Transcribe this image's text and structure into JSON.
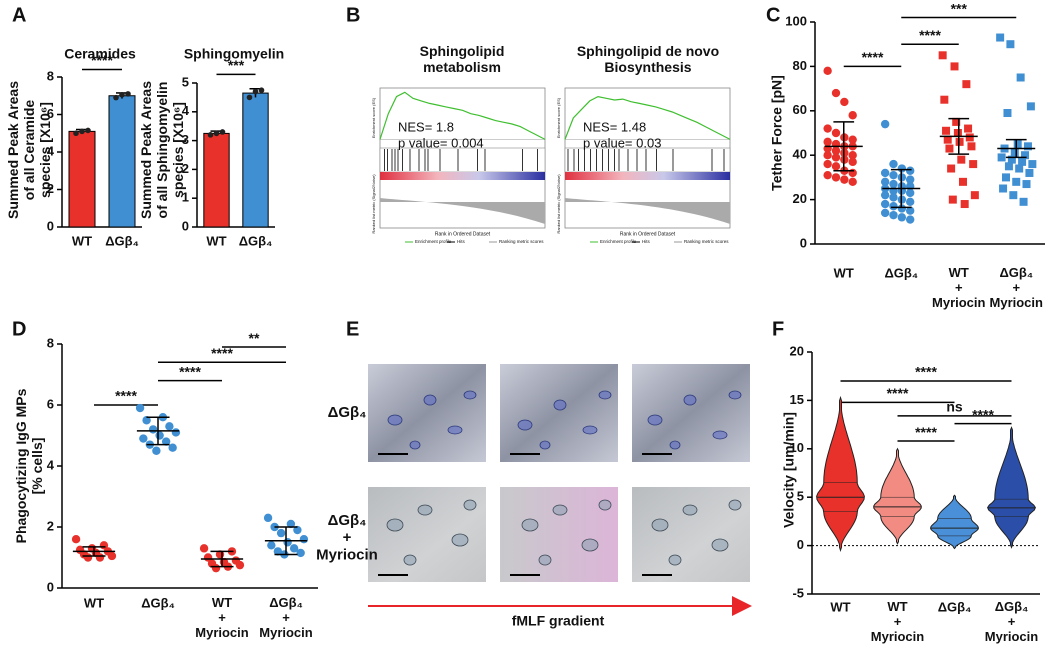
{
  "panel_labels": [
    "A",
    "B",
    "C",
    "D",
    "E",
    "F"
  ],
  "chart_data": [
    {
      "type": "bar",
      "title": "Ceramides",
      "ylabel": "Summed Peak Areas\nof all Ceramide\nspecies [X10⁶]",
      "categories": [
        "WT",
        "ΔGβ₄"
      ],
      "values": [
        5.1,
        7.0
      ],
      "errors": [
        0.1,
        0.15
      ],
      "points": [
        [
          5.0,
          5.1,
          5.15
        ],
        [
          6.9,
          7.05,
          7.1
        ]
      ],
      "colors": [
        "#e8312a",
        "#3f8fd2"
      ],
      "ylim": [
        0,
        8
      ],
      "yticks": [
        0,
        2,
        4,
        6,
        8
      ],
      "comparisons": [
        {
          "between": [
            0,
            1
          ],
          "label": "****"
        }
      ]
    },
    {
      "type": "bar",
      "title": "Sphingomyelin",
      "ylabel": "Summed Peak Areas\nof all Sphingomyelin\nspecies [X10⁶]",
      "categories": [
        "WT",
        "ΔGβ₄"
      ],
      "values": [
        3.25,
        4.65
      ],
      "errors": [
        0.08,
        0.15
      ],
      "points": [
        [
          3.2,
          3.25,
          3.3
        ],
        [
          4.5,
          4.7,
          4.75
        ]
      ],
      "colors": [
        "#e8312a",
        "#3f8fd2"
      ],
      "ylim": [
        0,
        5
      ],
      "yticks": [
        0,
        1,
        2,
        3,
        4,
        5
      ],
      "comparisons": [
        {
          "between": [
            0,
            1
          ],
          "label": "***"
        }
      ]
    },
    {
      "type": "gsea",
      "title": "Sphingolipid\nmetabolism",
      "annotations": [
        "NES= 1.8",
        "p value= 0.004"
      ],
      "ylabel": "Enrichment score (ES)",
      "lower_ylabel": "Ranked list metric (Signal2Noise)",
      "xlabel": "Rank in Ordered Dataset",
      "legend": [
        "Enrichment profile",
        "Hits",
        "Ranking metric scores"
      ],
      "color": "#3fbf2f",
      "xlim": [
        0,
        11000
      ],
      "ylim": [
        -0.1,
        0.6
      ],
      "x": [
        0,
        550,
        1100,
        1650,
        2200,
        2750,
        3300,
        3850,
        4400,
        4950,
        5500,
        6050,
        6600,
        7150,
        7700,
        8250,
        8800,
        9350,
        9900,
        10450,
        11000
      ],
      "values": [
        0,
        0.3,
        0.5,
        0.55,
        0.48,
        0.45,
        0.42,
        0.4,
        0.38,
        0.36,
        0.34,
        0.3,
        0.28,
        0.25,
        0.22,
        0.2,
        0.18,
        0.15,
        0.1,
        0.05,
        0
      ],
      "hits": [
        300,
        500,
        800,
        1000,
        1200,
        1500,
        2000,
        2600,
        3000,
        3200,
        4000,
        5200,
        6500,
        7000,
        9500,
        10500
      ]
    },
    {
      "type": "gsea",
      "title": "Sphingolipid de novo\nBiosynthesis",
      "annotations": [
        "NES= 1.48",
        "p value= 0.03"
      ],
      "ylabel": "Enrichment score (ES)",
      "lower_ylabel": "Ranked list metric (Signal2Noise)",
      "xlabel": "Rank in Ordered Dataset",
      "legend": [
        "Enrichment profile",
        "Hits",
        "Ranking metric scores"
      ],
      "color": "#3fbf2f",
      "xlim": [
        0,
        11000
      ],
      "ylim": [
        -0.1,
        0.6
      ],
      "x": [
        0,
        550,
        1100,
        1650,
        2200,
        2750,
        3300,
        3850,
        4400,
        4950,
        5500,
        6050,
        6600,
        7150,
        7700,
        8250,
        8800,
        9350,
        9900,
        10450,
        11000
      ],
      "values": [
        0,
        0.25,
        0.35,
        0.45,
        0.5,
        0.48,
        0.46,
        0.47,
        0.44,
        0.42,
        0.4,
        0.38,
        0.35,
        0.32,
        0.28,
        0.24,
        0.2,
        0.15,
        0.1,
        0.05,
        0
      ],
      "hits": [
        200,
        600,
        900,
        1300,
        1700,
        2100,
        2500,
        2900,
        3300,
        3600,
        4200,
        4800,
        5400,
        6100,
        7200,
        9800,
        10600
      ]
    },
    {
      "type": "strip",
      "ylabel": "Tether Force [pN]",
      "categories": [
        "WT",
        "ΔGβ₄",
        "WT\n+\nMyriocin",
        "ΔGβ₄\n+\nMyriocin"
      ],
      "colors": [
        "#e8312a",
        "#3f8fd2",
        "#e8312a",
        "#3f8fd2"
      ],
      "markers": [
        "circle",
        "circle",
        "square",
        "square"
      ],
      "points": [
        [
          78,
          68,
          64,
          58,
          52,
          50,
          48,
          47,
          46,
          45,
          44,
          44,
          43,
          42,
          41,
          40,
          40,
          39,
          38,
          37,
          36,
          35,
          33,
          32,
          31,
          30,
          29,
          28
        ],
        [
          54,
          36,
          34,
          33,
          32,
          31,
          30,
          29,
          28,
          27,
          26,
          26,
          25,
          24,
          24,
          23,
          22,
          21,
          20,
          19,
          18,
          17,
          16,
          15,
          14,
          13,
          12,
          11
        ],
        [
          85,
          80,
          72,
          65,
          55,
          52,
          51,
          50,
          48,
          47,
          46,
          44,
          43,
          38,
          36,
          34,
          28,
          22,
          20,
          18
        ],
        [
          93,
          90,
          75,
          62,
          59,
          45,
          44,
          43,
          41,
          40,
          39,
          38,
          37,
          36,
          35,
          34,
          32,
          30,
          28,
          27,
          25,
          22,
          19
        ]
      ],
      "means": [
        44,
        25,
        48.5,
        43
      ],
      "errors": [
        11,
        8.5,
        8,
        4
      ],
      "ylim": [
        0,
        100
      ],
      "yticks": [
        0,
        20,
        40,
        60,
        80,
        100
      ],
      "comparisons": [
        {
          "between": [
            0,
            1
          ],
          "label": "****"
        },
        {
          "between": [
            1,
            2
          ],
          "label": "****"
        },
        {
          "between": [
            1,
            3
          ],
          "label": "***"
        }
      ]
    },
    {
      "type": "strip",
      "ylabel": "Phagocytizing IgG MPs\n[% cells]",
      "categories": [
        "WT",
        "ΔGβ₄",
        "WT\n+\nMyriocin",
        "ΔGβ₄\n+\nMyriocin"
      ],
      "colors": [
        "#e8312a",
        "#3f8fd2",
        "#e8312a",
        "#3f8fd2"
      ],
      "markers": [
        "circle",
        "circle",
        "circle",
        "circle"
      ],
      "points": [
        [
          1.6,
          1.4,
          1.3,
          1.25,
          1.2,
          1.15,
          1.1,
          1.05,
          1.0,
          1.0
        ],
        [
          5.9,
          5.6,
          5.5,
          5.3,
          5.2,
          5.1,
          5.0,
          4.9,
          4.8,
          4.7,
          4.6,
          4.5
        ],
        [
          1.3,
          1.2,
          1.1,
          1.0,
          0.9,
          0.85,
          0.8,
          0.75,
          0.7,
          0.65
        ],
        [
          2.3,
          2.1,
          2.0,
          1.9,
          1.8,
          1.6,
          1.5,
          1.4,
          1.3,
          1.2,
          1.15,
          1.1
        ]
      ],
      "means": [
        1.2,
        5.15,
        0.95,
        1.55
      ],
      "errors": [
        0.15,
        0.45,
        0.25,
        0.45
      ],
      "ylim": [
        0,
        8
      ],
      "yticks": [
        0,
        2,
        4,
        6,
        8
      ],
      "comparisons": [
        {
          "between": [
            0,
            1
          ],
          "label": "****"
        },
        {
          "between": [
            1,
            2
          ],
          "label": "****"
        },
        {
          "between": [
            1,
            3
          ],
          "label": "****"
        },
        {
          "between": [
            2,
            3
          ],
          "label": "**"
        }
      ]
    },
    {
      "type": "violin",
      "ylabel": "Velocity [um/min]",
      "categories": [
        "WT",
        "WT\n+\nMyriocin",
        "ΔGβ₄",
        "ΔGβ₄\n+\nMyriocin"
      ],
      "colors": [
        "#e8312a",
        "#f28b82",
        "#4a90d9",
        "#2b4fa8"
      ],
      "stats": [
        {
          "min": -0.5,
          "q1": 3.5,
          "median": 5.0,
          "q3": 6.5,
          "max": 15.3
        },
        {
          "min": 0.2,
          "q1": 3.0,
          "median": 4.0,
          "q3": 5.0,
          "max": 10.0
        },
        {
          "min": -0.3,
          "q1": 1.0,
          "median": 1.8,
          "q3": 2.8,
          "max": 5.2
        },
        {
          "min": -0.2,
          "q1": 3.0,
          "median": 3.9,
          "q3": 4.8,
          "max": 12.2
        }
      ],
      "ylim": [
        -5,
        20
      ],
      "yticks": [
        -5,
        0,
        5,
        10,
        15,
        20
      ],
      "zero_line": true,
      "comparisons": [
        {
          "between": [
            0,
            3
          ],
          "label": "****"
        },
        {
          "between": [
            0,
            2
          ],
          "label": "****"
        },
        {
          "between": [
            1,
            3
          ],
          "label": "ns"
        },
        {
          "between": [
            2,
            3
          ],
          "label": "****"
        },
        {
          "between": [
            1,
            2
          ],
          "label": "****"
        }
      ]
    }
  ],
  "panel_e": {
    "row_labels": [
      "ΔGβ₄",
      "ΔGβ₄\n+\nMyriocin"
    ],
    "arrow_label": "fMLF gradient"
  }
}
